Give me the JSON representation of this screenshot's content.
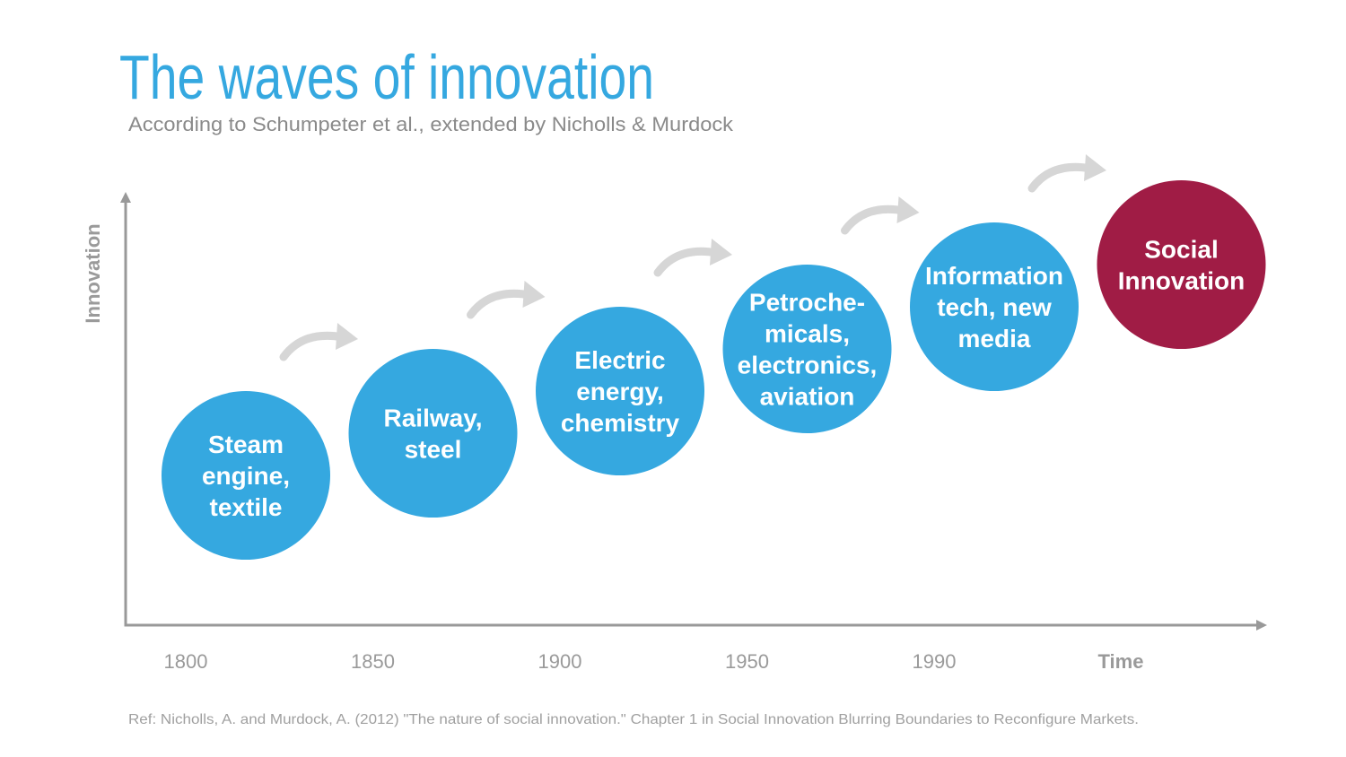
{
  "header": {
    "title": "The waves of innovation",
    "subtitle": "According to Schumpeter et al., extended by Nicholls & Murdock"
  },
  "axes": {
    "y_label": "Innovation",
    "x_label": "Time",
    "x_labels": [
      "1800",
      "1850",
      "1900",
      "1950",
      "1990"
    ]
  },
  "waves": [
    {
      "lines": [
        "Steam",
        "engine,",
        "textile"
      ]
    },
    {
      "lines": [
        "Railway,",
        "steel"
      ]
    },
    {
      "lines": [
        "Electric",
        "energy,",
        "chemistry"
      ]
    },
    {
      "lines": [
        "Petroche-",
        "micals,",
        "electronics,",
        "aviation"
      ]
    },
    {
      "lines": [
        "Information",
        "tech, new",
        "media"
      ]
    },
    {
      "lines": [
        "Social",
        "Innovation"
      ]
    }
  ],
  "reference": "Ref: Nicholls, A. and Murdock, A. (2012) \"The nature of social innovation.\" Chapter 1 in Social Innovation Blurring Boundaries to Reconfigure Markets."
}
